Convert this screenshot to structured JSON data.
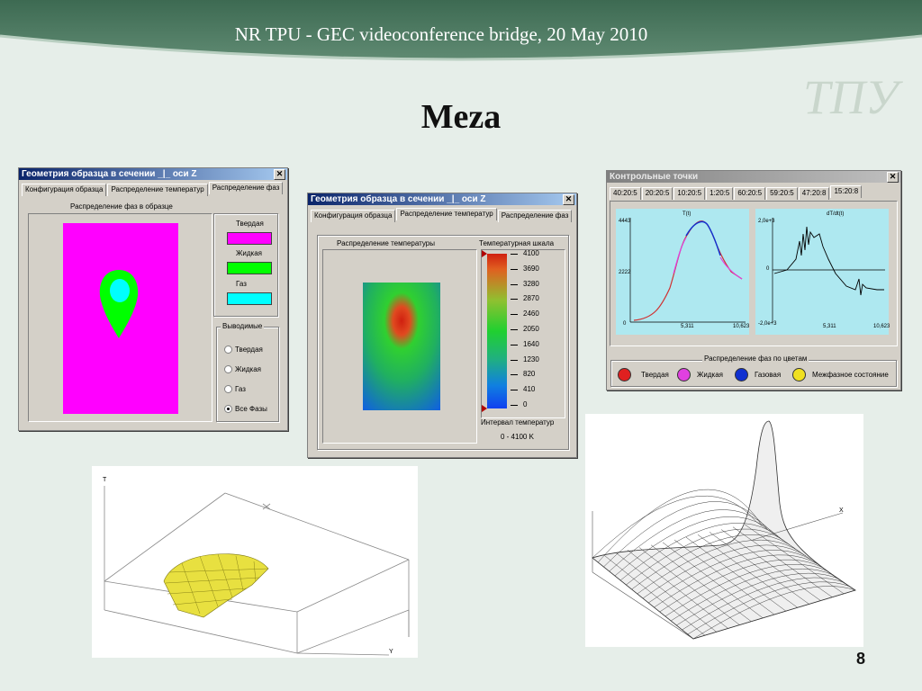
{
  "header": {
    "title": "NR TPU - GEC videoconference bridge, 20 May 2010"
  },
  "slide": {
    "title": "Meza",
    "page_number": "8"
  },
  "window_phase": {
    "title": "Геометрия образца в сечении _|_ оси Z",
    "tabs": [
      "Конфигурация образца",
      "Распределение температур",
      "Распределение фаз"
    ],
    "active_tab": 2,
    "plot_title": "Распределение фаз в образце",
    "legend": [
      {
        "label": "Твердая",
        "color": "#ff00ff"
      },
      {
        "label": "Жидкая",
        "color": "#00ff00"
      },
      {
        "label": "Газ",
        "color": "#00ffff"
      }
    ],
    "output_group": "Выводимые",
    "radios": [
      {
        "label": "Твердая",
        "checked": false
      },
      {
        "label": "Жидкая",
        "checked": false
      },
      {
        "label": "Газ",
        "checked": false
      },
      {
        "label": "Все Фазы",
        "checked": true
      }
    ]
  },
  "window_temp": {
    "title": "Геометрия образца в сечении _|_ оси Z",
    "tabs": [
      "Конфигурация образца",
      "Распределение температур",
      "Распределение фаз"
    ],
    "active_tab": 1,
    "plot_title": "Распределение температуры",
    "scale_title": "Температурная шкала",
    "scale_values": [
      "4100",
      "3690",
      "3280",
      "2870",
      "2460",
      "2050",
      "1640",
      "1230",
      "820",
      "410",
      "0"
    ],
    "interval_label": "Интервал температур",
    "interval_value": "0 - 4100 K"
  },
  "window_control": {
    "title": "Контрольные точки",
    "tabs": [
      "40:20:5",
      "20:20:5",
      "10:20:5",
      "1:20:5",
      "60:20:5",
      "59:20:5",
      "47:20:8",
      "15:20:8"
    ],
    "active_tab": 7,
    "plot1": {
      "title": "T(t)",
      "y_top": "4443",
      "y_mid": "2222",
      "y_bot": "0",
      "x_mid": "5,311",
      "x_right": "10,623"
    },
    "plot2": {
      "title": "dT/dt(t)",
      "y_top": "2,0e+3",
      "y_mid": "0",
      "y_bot": "-2,0e+3",
      "x_mid": "5,311",
      "x_right": "10,623"
    },
    "legend_title": "Распределение фаз по цветам",
    "legend": [
      {
        "label": "Твердая",
        "color": "#e02020"
      },
      {
        "label": "Жидкая",
        "color": "#e040e0"
      },
      {
        "label": "Газовая",
        "color": "#1030d0"
      },
      {
        "label": "Межфазное состояние",
        "color": "#f0e020"
      }
    ]
  },
  "plot3d": {
    "axis_t": "T",
    "axis_x": "X",
    "axis_y": "Y"
  }
}
